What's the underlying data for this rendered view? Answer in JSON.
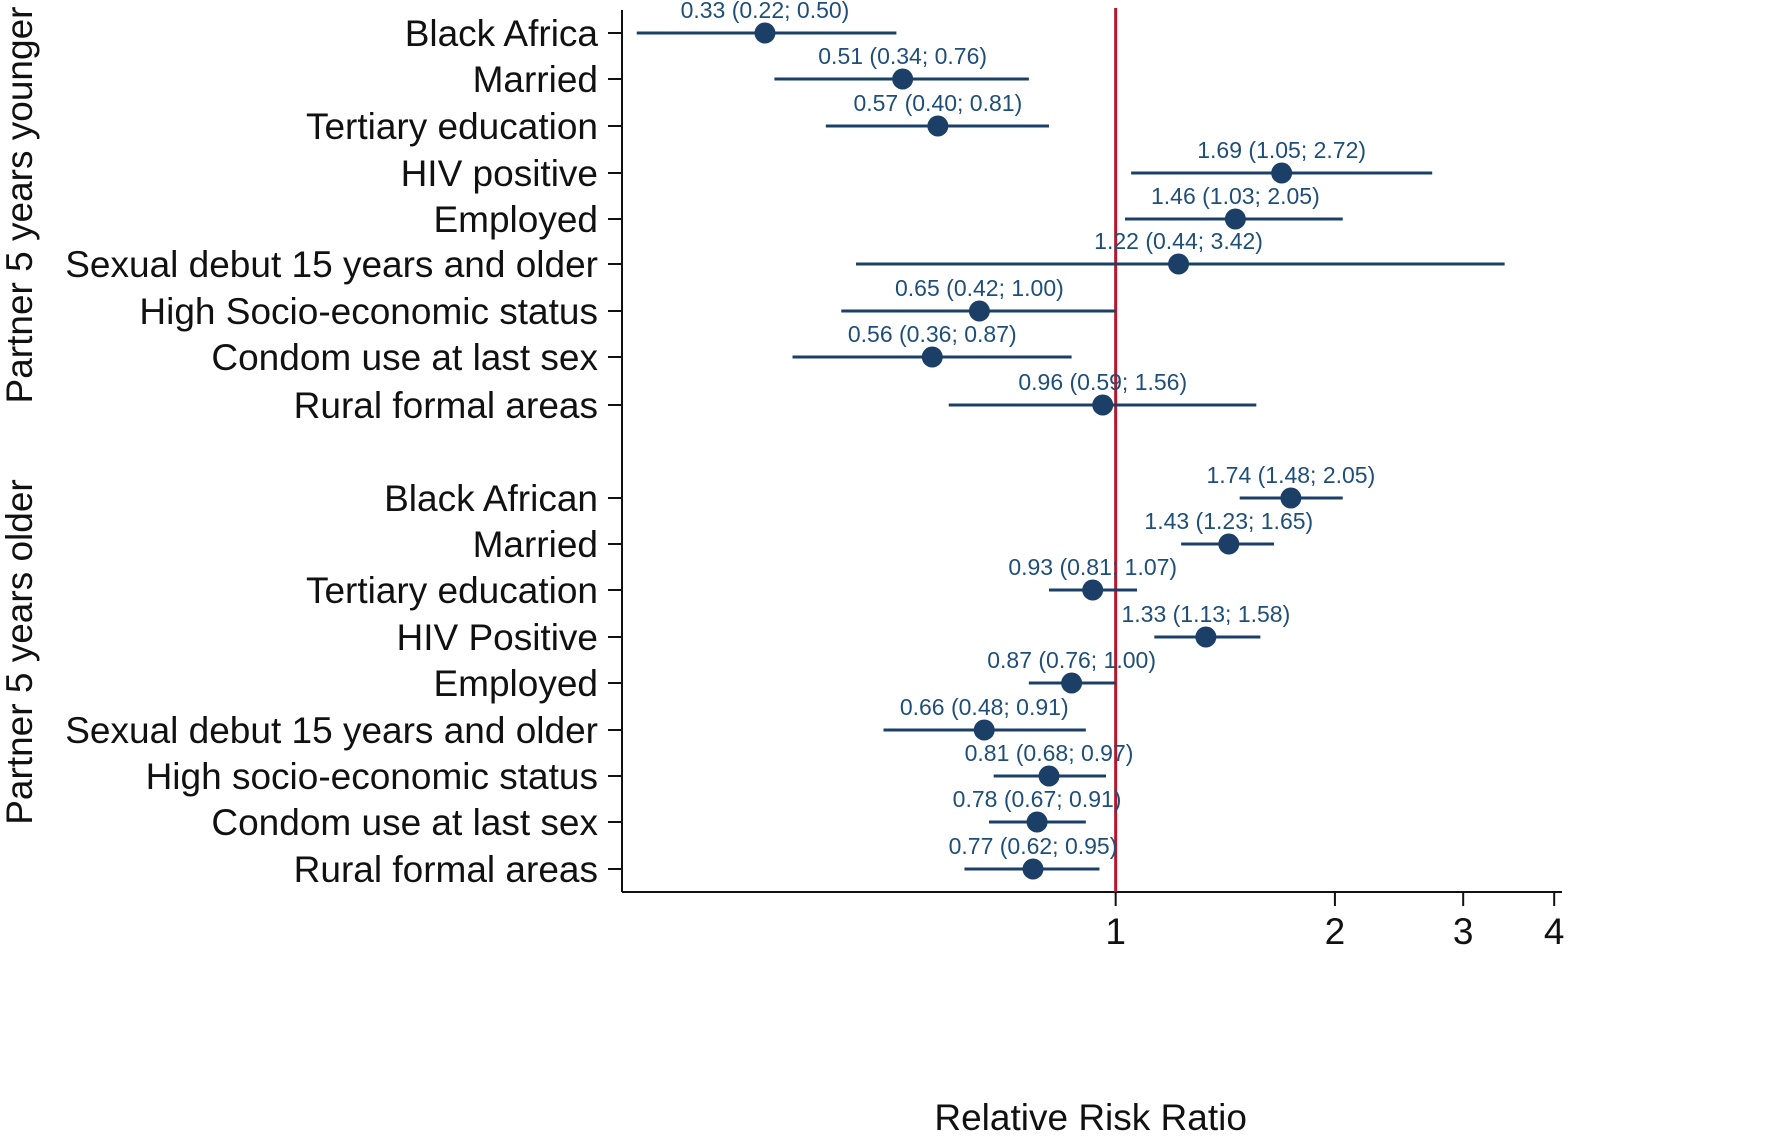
{
  "colors": {
    "point": "#1b3f66",
    "ci": "#1b3f66",
    "estimate_text": "#1f4e79",
    "reference_line": "#b5162b",
    "axis": "#111111"
  },
  "chart_data": {
    "type": "forest",
    "title": "",
    "xlabel": "Relative Risk Ratio",
    "x_scale": "log",
    "xlim": [
      0.21,
      4.1
    ],
    "x_ticks": [
      {
        "value": 1,
        "label": "1"
      },
      {
        "value": 2,
        "label": "2"
      },
      {
        "value": 3,
        "label": "3"
      },
      {
        "value": 4,
        "label": "4"
      }
    ],
    "reference_value": 1,
    "groups": [
      {
        "name": "Partner 5 years younger",
        "rows": [
          {
            "label": "Black Africa",
            "estimate": 0.33,
            "lower": 0.22,
            "upper": 0.5,
            "text": "0.33 (0.22; 0.50)"
          },
          {
            "label": "Married",
            "estimate": 0.51,
            "lower": 0.34,
            "upper": 0.76,
            "text": "0.51 (0.34; 0.76)"
          },
          {
            "label": "Tertiary education",
            "estimate": 0.57,
            "lower": 0.4,
            "upper": 0.81,
            "text": "0.57 (0.40; 0.81)"
          },
          {
            "label": "HIV positive",
            "estimate": 1.69,
            "lower": 1.05,
            "upper": 2.72,
            "text": "1.69 (1.05; 2.72)"
          },
          {
            "label": "Employed",
            "estimate": 1.46,
            "lower": 1.03,
            "upper": 2.05,
            "text": "1.46 (1.03; 2.05)"
          },
          {
            "label": "Sexual debut 15 years and older",
            "estimate": 1.22,
            "lower": 0.44,
            "upper": 3.42,
            "text": "1.22 (0.44; 3.42)"
          },
          {
            "label": "High Socio-economic status",
            "estimate": 0.65,
            "lower": 0.42,
            "upper": 1.0,
            "text": "0.65 (0.42; 1.00)"
          },
          {
            "label": "Condom use at last sex",
            "estimate": 0.56,
            "lower": 0.36,
            "upper": 0.87,
            "text": "0.56 (0.36; 0.87)"
          },
          {
            "label": "Rural formal areas",
            "estimate": 0.96,
            "lower": 0.59,
            "upper": 1.56,
            "text": "0.96 (0.59; 1.56)"
          }
        ]
      },
      {
        "name": "Partner 5 years older",
        "rows": [
          {
            "label": "Black African",
            "estimate": 1.74,
            "lower": 1.48,
            "upper": 2.05,
            "text": "1.74 (1.48; 2.05)"
          },
          {
            "label": "Married",
            "estimate": 1.43,
            "lower": 1.23,
            "upper": 1.65,
            "text": "1.43 (1.23; 1.65)"
          },
          {
            "label": "Tertiary education",
            "estimate": 0.93,
            "lower": 0.81,
            "upper": 1.07,
            "text": "0.93 (0.81; 1.07)"
          },
          {
            "label": "HIV Positive",
            "estimate": 1.33,
            "lower": 1.13,
            "upper": 1.58,
            "text": "1.33 (1.13; 1.58)"
          },
          {
            "label": "Employed",
            "estimate": 0.87,
            "lower": 0.76,
            "upper": 1.0,
            "text": "0.87 (0.76; 1.00)"
          },
          {
            "label": "Sexual debut 15 years and older",
            "estimate": 0.66,
            "lower": 0.48,
            "upper": 0.91,
            "text": "0.66 (0.48; 0.91)"
          },
          {
            "label": "High socio-economic status",
            "estimate": 0.81,
            "lower": 0.68,
            "upper": 0.97,
            "text": "0.81 (0.68; 0.97)"
          },
          {
            "label": "Condom use at last sex",
            "estimate": 0.78,
            "lower": 0.67,
            "upper": 0.91,
            "text": "0.78 (0.67; 0.91)"
          },
          {
            "label": "Rural formal areas",
            "estimate": 0.77,
            "lower": 0.62,
            "upper": 0.95,
            "text": "0.77 (0.62; 0.95)"
          }
        ]
      }
    ]
  }
}
